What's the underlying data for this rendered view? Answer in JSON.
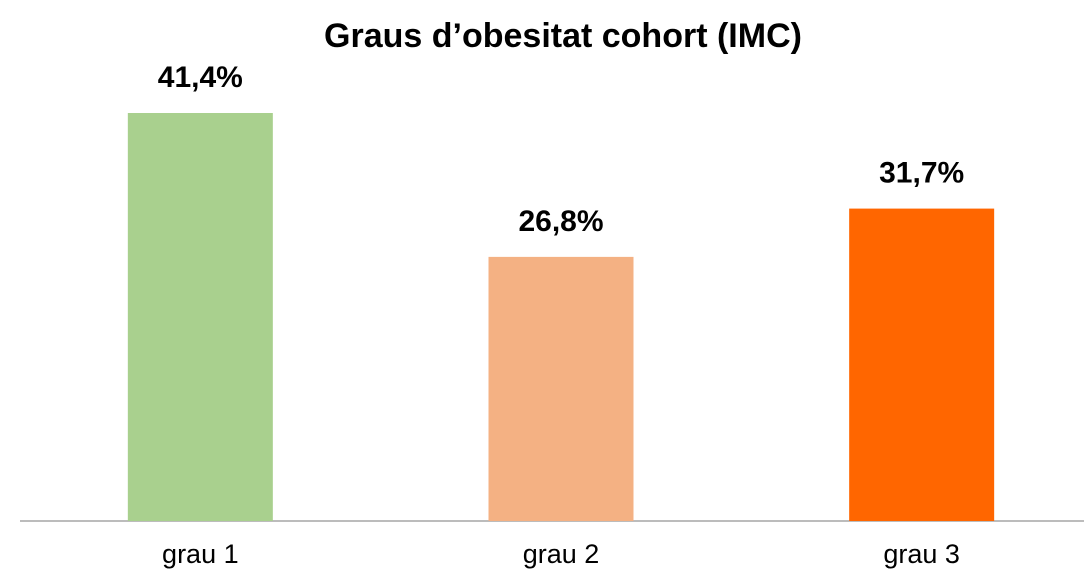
{
  "chart_data": {
    "type": "bar",
    "title": "Graus d’obesitat cohort (IMC)",
    "categories": [
      "grau 1",
      "grau 2",
      "grau 3"
    ],
    "values": [
      41.4,
      26.8,
      31.7
    ],
    "value_labels": [
      "41,4%",
      "26,8%",
      "31,7%"
    ],
    "colors": [
      "#a9d08e",
      "#f4b183",
      "#ff6600"
    ]
  }
}
